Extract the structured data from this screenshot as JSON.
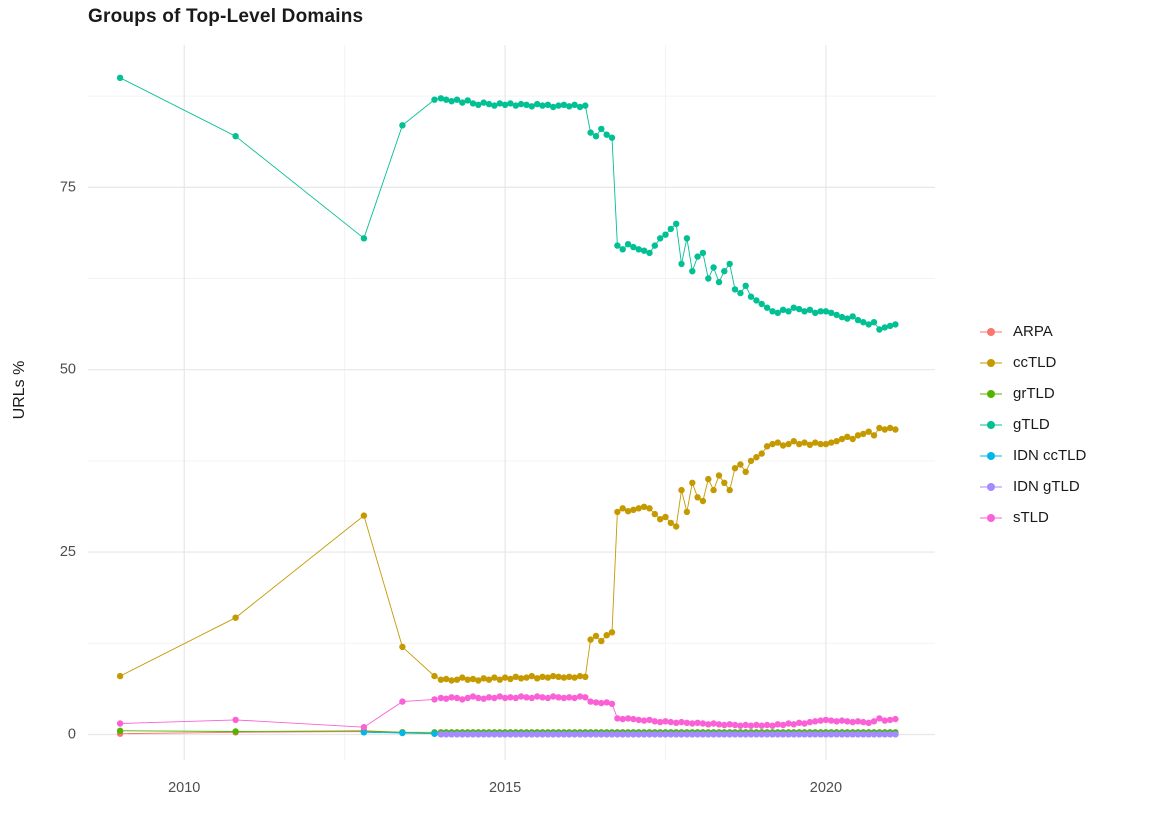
{
  "chart_data": {
    "type": "line",
    "title": "Groups of Top-Level Domains",
    "xlabel": "",
    "ylabel": "URLs %",
    "x_ticks": [
      2010,
      2015,
      2020
    ],
    "x_minor": [
      2012.5,
      2017.5
    ],
    "y_ticks": [
      0,
      25,
      50,
      75
    ],
    "y_minor": [
      12.5,
      37.5,
      62.5,
      87.5
    ],
    "xlim": [
      2008.5,
      2021.7
    ],
    "ylim": [
      -3.5,
      94.5
    ],
    "grid": true,
    "legend_position": "right",
    "colors": {
      "grid_major": "#e7e7e7",
      "grid_minor": "#f3f3f3",
      "tick_label": "#4d4d4d"
    },
    "x": [
      2009.0,
      2010.8,
      2012.8,
      2013.4,
      2013.9,
      2014.0,
      2014.083,
      2014.167,
      2014.25,
      2014.333,
      2014.417,
      2014.5,
      2014.583,
      2014.667,
      2014.75,
      2014.833,
      2014.917,
      2015.0,
      2015.083,
      2015.167,
      2015.25,
      2015.333,
      2015.417,
      2015.5,
      2015.583,
      2015.667,
      2015.75,
      2015.833,
      2015.917,
      2016.0,
      2016.083,
      2016.167,
      2016.25,
      2016.333,
      2016.417,
      2016.5,
      2016.583,
      2016.667,
      2016.75,
      2016.833,
      2016.917,
      2017.0,
      2017.083,
      2017.167,
      2017.25,
      2017.333,
      2017.417,
      2017.5,
      2017.583,
      2017.667,
      2017.75,
      2017.833,
      2017.917,
      2018.0,
      2018.083,
      2018.167,
      2018.25,
      2018.333,
      2018.417,
      2018.5,
      2018.583,
      2018.667,
      2018.75,
      2018.833,
      2018.917,
      2019.0,
      2019.083,
      2019.167,
      2019.25,
      2019.333,
      2019.417,
      2019.5,
      2019.583,
      2019.667,
      2019.75,
      2019.833,
      2019.917,
      2020.0,
      2020.083,
      2020.167,
      2020.25,
      2020.333,
      2020.417,
      2020.5,
      2020.583,
      2020.667,
      2020.75,
      2020.833,
      2020.917,
      2021.0,
      2021.083
    ],
    "series": [
      {
        "name": "ARPA",
        "color": "#F8766D",
        "y": [
          0.1,
          0.3,
          0.4,
          0.3,
          0.1,
          0.05,
          0.05,
          0.05,
          0.05,
          0.05,
          0.05,
          0.05,
          0.05,
          0.05,
          0.05,
          0.05,
          0.05,
          0.05,
          0.05,
          0.05,
          0.05,
          0.05,
          0.05,
          0.05,
          0.05,
          0.05,
          0.05,
          0.05,
          0.05,
          0.05,
          0.05,
          0.05,
          0.05,
          0.05,
          0.05,
          0.05,
          0.05,
          0.05,
          0.05,
          0.05,
          0.05,
          0.05,
          0.05,
          0.05,
          0.05,
          0.05,
          0.05,
          0.05,
          0.05,
          0.05,
          0.05,
          0.05,
          0.05,
          0.05,
          0.05,
          0.05,
          0.05,
          0.05,
          0.05,
          0.05,
          0.05,
          0.05,
          0.05,
          0.05,
          0.05,
          0.05,
          0.05,
          0.05,
          0.05,
          0.05,
          0.05,
          0.05,
          0.05,
          0.05,
          0.05,
          0.05,
          0.05,
          0.05,
          0.05,
          0.05,
          0.05,
          0.05,
          0.05,
          0.05,
          0.05,
          0.05,
          0.05,
          0.05,
          0.05,
          0.05,
          0.05
        ]
      },
      {
        "name": "ccTLD",
        "color": "#C49A00",
        "y": [
          8,
          16,
          30,
          12,
          8,
          7.5,
          7.6,
          7.4,
          7.5,
          7.8,
          7.5,
          7.6,
          7.4,
          7.7,
          7.5,
          7.8,
          7.5,
          7.8,
          7.6,
          7.9,
          7.7,
          7.8,
          8,
          7.7,
          7.9,
          7.8,
          8,
          7.9,
          7.8,
          7.9,
          7.8,
          8,
          7.9,
          13,
          13.5,
          12.8,
          13.6,
          14,
          30.5,
          31,
          30.6,
          30.8,
          31,
          31.2,
          31,
          30.2,
          29.5,
          29.8,
          29,
          28.5,
          33.5,
          30.5,
          34.5,
          32.5,
          32,
          35,
          33.5,
          35.5,
          34.5,
          33.5,
          36.5,
          37,
          36,
          37.5,
          38,
          38.5,
          39.5,
          39.8,
          40,
          39.6,
          39.8,
          40.2,
          39.8,
          40,
          39.7,
          40,
          39.8,
          39.8,
          40,
          40.2,
          40.5,
          40.8,
          40.5,
          41,
          41.2,
          41.5,
          41,
          42,
          41.8,
          42,
          41.8
        ]
      },
      {
        "name": "grTLD",
        "color": "#53B400",
        "y": [
          0.5,
          0.4,
          0.5,
          0.3,
          0.3,
          0.3,
          0.3,
          0.3,
          0.3,
          0.3,
          0.3,
          0.3,
          0.3,
          0.3,
          0.3,
          0.3,
          0.3,
          0.3,
          0.3,
          0.3,
          0.3,
          0.3,
          0.3,
          0.3,
          0.3,
          0.3,
          0.3,
          0.3,
          0.3,
          0.3,
          0.3,
          0.3,
          0.3,
          0.3,
          0.3,
          0.3,
          0.3,
          0.3,
          0.3,
          0.3,
          0.3,
          0.3,
          0.3,
          0.3,
          0.3,
          0.3,
          0.3,
          0.3,
          0.3,
          0.3,
          0.3,
          0.3,
          0.3,
          0.3,
          0.3,
          0.3,
          0.3,
          0.3,
          0.3,
          0.3,
          0.3,
          0.3,
          0.3,
          0.3,
          0.3,
          0.3,
          0.3,
          0.3,
          0.3,
          0.3,
          0.3,
          0.3,
          0.3,
          0.3,
          0.3,
          0.3,
          0.3,
          0.3,
          0.3,
          0.3,
          0.3,
          0.3,
          0.3,
          0.3,
          0.3,
          0.3,
          0.3,
          0.3,
          0.3,
          0.3,
          0.3
        ]
      },
      {
        "name": "gTLD",
        "color": "#00C094",
        "y": [
          90,
          82,
          68,
          83.5,
          87,
          87.2,
          87,
          86.8,
          87,
          86.6,
          86.9,
          86.5,
          86.3,
          86.6,
          86.4,
          86.2,
          86.5,
          86.3,
          86.5,
          86.2,
          86.4,
          86.3,
          86.1,
          86.4,
          86.2,
          86.3,
          86,
          86.2,
          86.3,
          86.1,
          86.3,
          86,
          86.2,
          82.5,
          82,
          83,
          82.2,
          81.8,
          67,
          66.5,
          67.2,
          66.8,
          66.5,
          66.3,
          66,
          67,
          68,
          68.5,
          69.3,
          70,
          64.5,
          68,
          63.5,
          65.5,
          66,
          62.5,
          64,
          62,
          63.5,
          64.5,
          61,
          60.5,
          61.5,
          60,
          59.5,
          59,
          58.5,
          58,
          57.8,
          58.2,
          58,
          58.5,
          58.3,
          58,
          58.2,
          57.8,
          58,
          58,
          57.8,
          57.5,
          57.2,
          57,
          57.3,
          56.8,
          56.5,
          56.2,
          56.5,
          55.5,
          55.8,
          56,
          56.2
        ]
      },
      {
        "name": "IDN ccTLD",
        "color": "#00B6EB",
        "y": [
          null,
          null,
          0.3,
          0.2,
          0.1,
          0.05,
          0.05,
          0.05,
          0.05,
          0.05,
          0.05,
          0.05,
          0.05,
          0.05,
          0.05,
          0.05,
          0.05,
          0.05,
          0.05,
          0.05,
          0.05,
          0.05,
          0.05,
          0.05,
          0.05,
          0.05,
          0.05,
          0.05,
          0.05,
          0.05,
          0.05,
          0.05,
          0.05,
          0.05,
          0.05,
          0.05,
          0.05,
          0.05,
          0.05,
          0.05,
          0.05,
          0.05,
          0.05,
          0.05,
          0.05,
          0.05,
          0.05,
          0.05,
          0.05,
          0.05,
          0.05,
          0.05,
          0.05,
          0.05,
          0.05,
          0.05,
          0.05,
          0.05,
          0.05,
          0.05,
          0.05,
          0.05,
          0.05,
          0.05,
          0.05,
          0.05,
          0.05,
          0.05,
          0.05,
          0.05,
          0.05,
          0.05,
          0.05,
          0.05,
          0.05,
          0.05,
          0.05,
          0.05,
          0.05,
          0.05,
          0.05,
          0.05,
          0.05,
          0.05,
          0.05,
          0.05,
          0.05,
          0.05,
          0.05,
          0.05,
          0.05
        ]
      },
      {
        "name": "IDN gTLD",
        "color": "#A58AFF",
        "y": [
          null,
          null,
          null,
          null,
          null,
          0.02,
          0.02,
          0.02,
          0.02,
          0.02,
          0.02,
          0.02,
          0.02,
          0.02,
          0.02,
          0.02,
          0.02,
          0.02,
          0.02,
          0.02,
          0.02,
          0.02,
          0.02,
          0.02,
          0.02,
          0.02,
          0.02,
          0.02,
          0.02,
          0.02,
          0.02,
          0.02,
          0.02,
          0.02,
          0.02,
          0.02,
          0.02,
          0.02,
          0.02,
          0.02,
          0.02,
          0.02,
          0.02,
          0.02,
          0.02,
          0.02,
          0.02,
          0.02,
          0.02,
          0.02,
          0.02,
          0.02,
          0.02,
          0.02,
          0.02,
          0.02,
          0.02,
          0.02,
          0.02,
          0.02,
          0.02,
          0.02,
          0.02,
          0.02,
          0.02,
          0.02,
          0.02,
          0.02,
          0.02,
          0.02,
          0.02,
          0.02,
          0.02,
          0.02,
          0.02,
          0.02,
          0.02,
          0.02,
          0.02,
          0.02,
          0.02,
          0.02,
          0.02,
          0.02,
          0.02,
          0.02,
          0.02,
          0.02,
          0.02,
          0.02,
          0.02
        ]
      },
      {
        "name": "sTLD",
        "color": "#FB61D7",
        "y": [
          1.5,
          2,
          1,
          4.5,
          4.8,
          5,
          4.9,
          5.1,
          5,
          4.8,
          5,
          5.2,
          5,
          4.9,
          5.1,
          5,
          5.2,
          5,
          5.1,
          5,
          5.2,
          5.1,
          5,
          5.2,
          5.1,
          5,
          5.2,
          5.1,
          5,
          5.1,
          5,
          5.2,
          5.1,
          4.5,
          4.4,
          4.3,
          4.4,
          4.2,
          2.2,
          2.1,
          2.2,
          2.1,
          2,
          1.9,
          2,
          1.8,
          1.7,
          1.8,
          1.7,
          1.6,
          1.7,
          1.6,
          1.5,
          1.6,
          1.5,
          1.4,
          1.5,
          1.4,
          1.3,
          1.4,
          1.3,
          1.2,
          1.3,
          1.2,
          1.3,
          1.2,
          1.3,
          1.2,
          1.4,
          1.3,
          1.5,
          1.4,
          1.6,
          1.5,
          1.7,
          1.8,
          1.9,
          2,
          1.9,
          1.8,
          1.9,
          1.8,
          1.7,
          1.8,
          1.7,
          1.6,
          1.8,
          2.2,
          1.9,
          2,
          2.1
        ]
      }
    ]
  }
}
